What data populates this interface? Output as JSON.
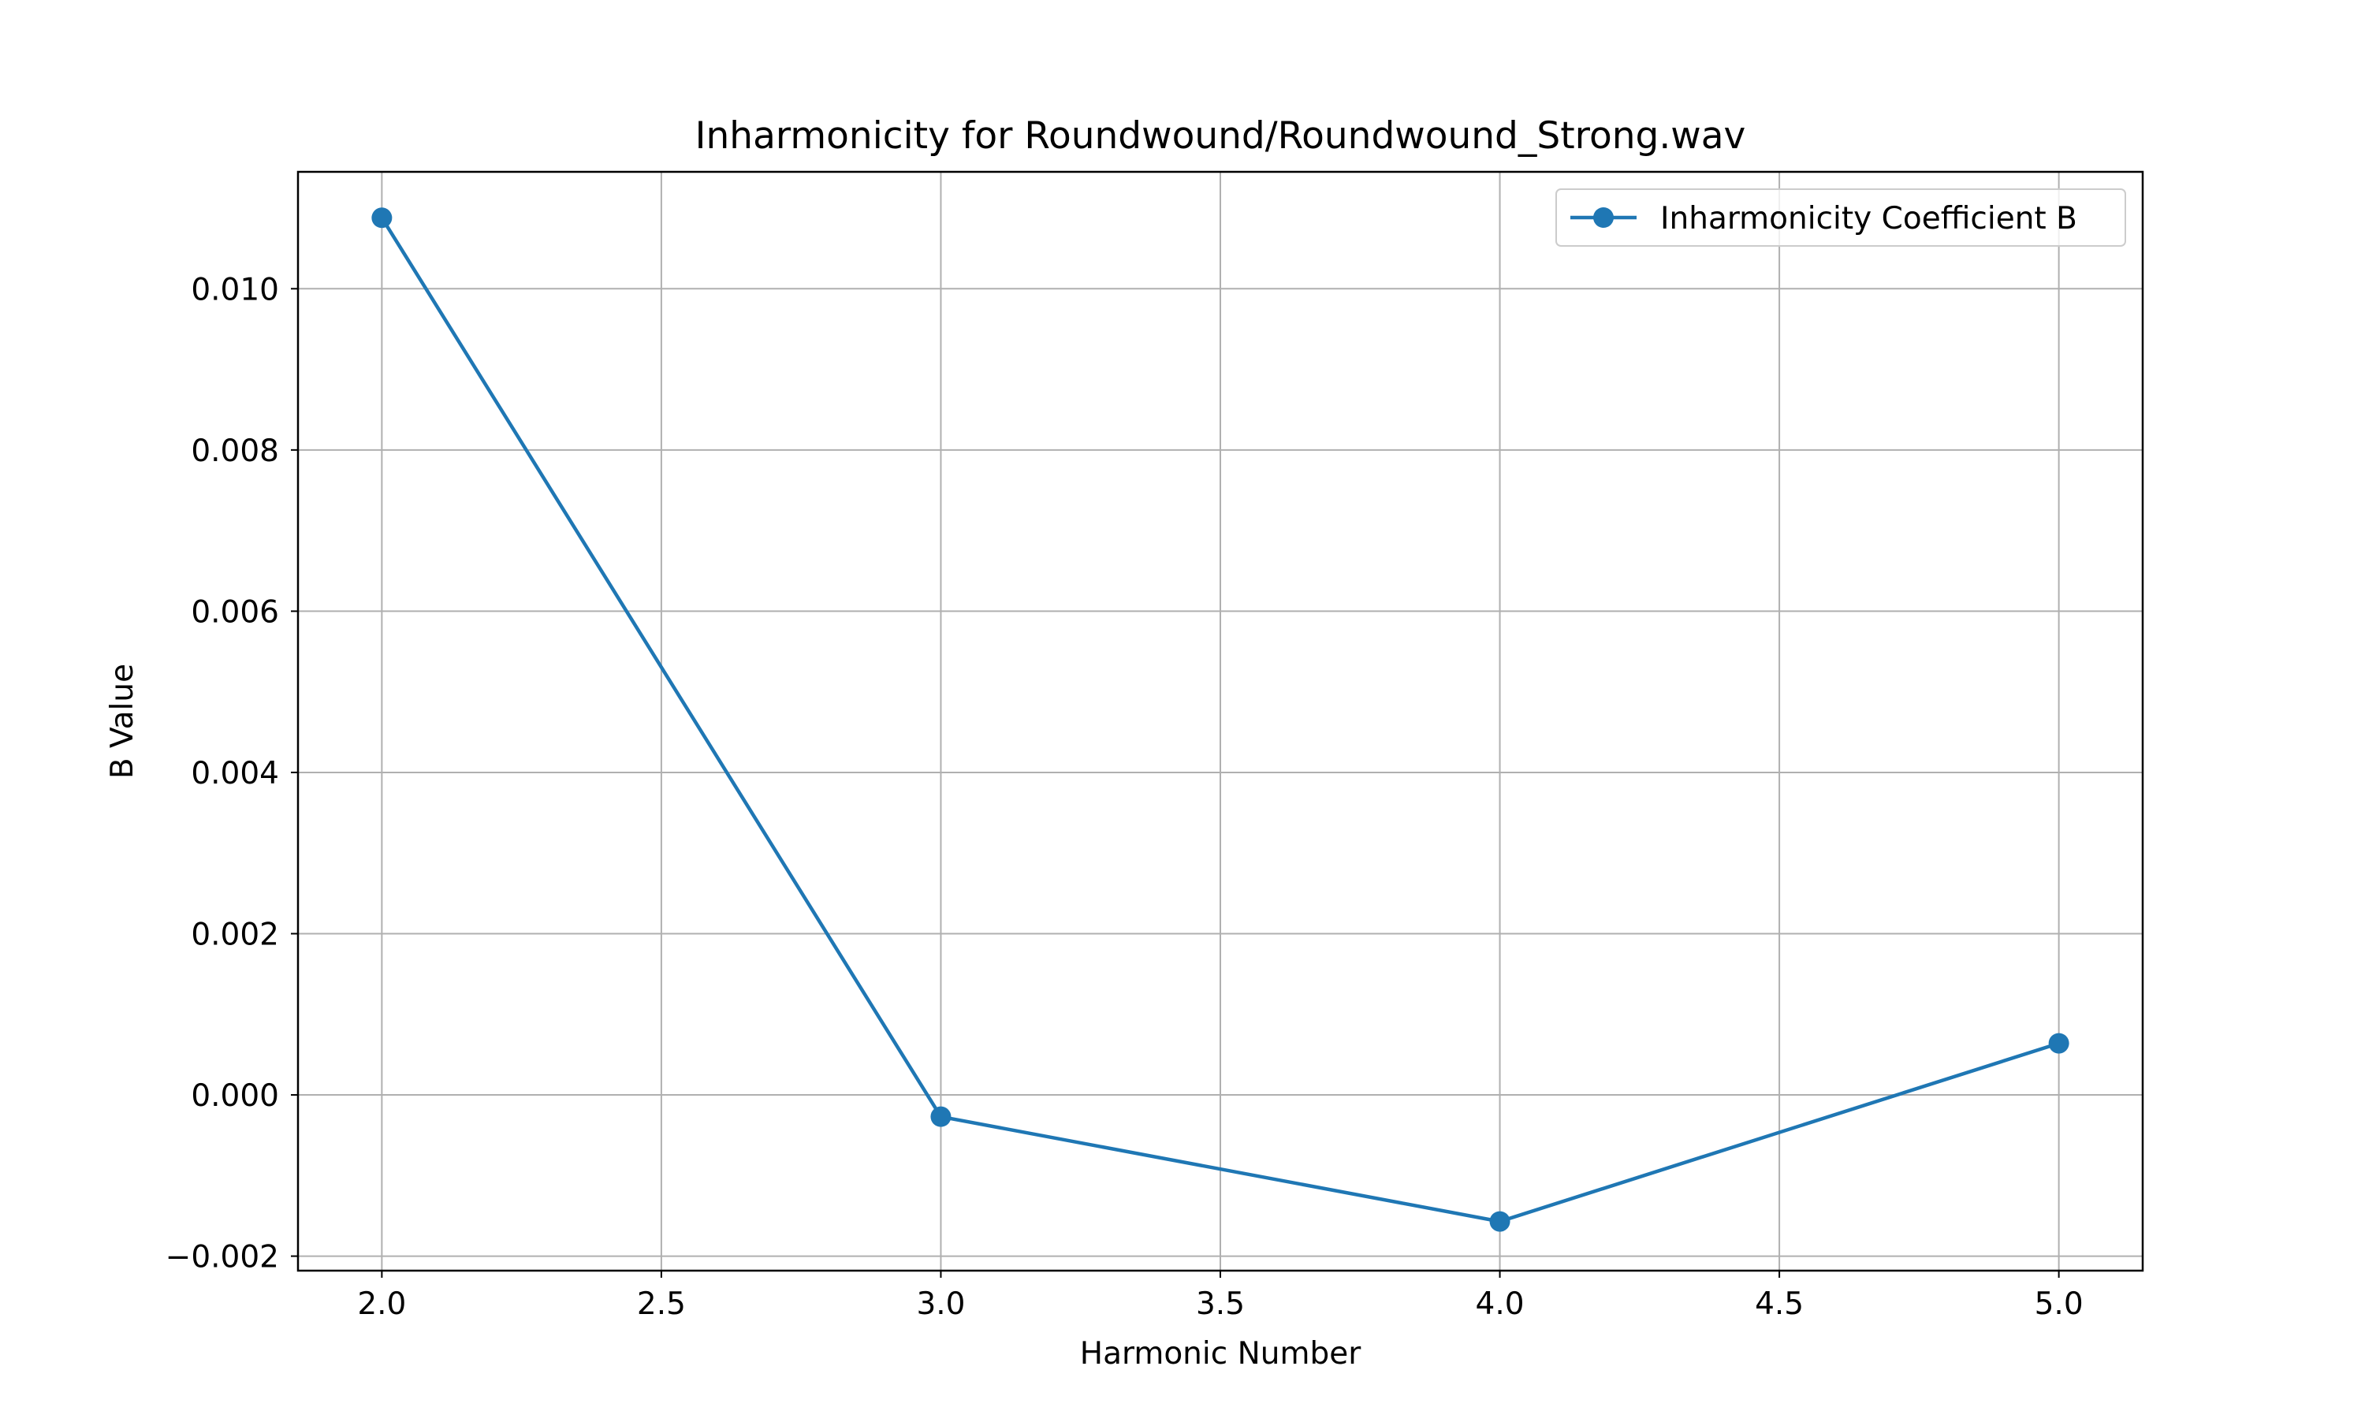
{
  "chart_data": {
    "type": "line",
    "title": "Inharmonicity for Roundwound/Roundwound_Strong.wav",
    "xlabel": "Harmonic Number",
    "ylabel": "B Value",
    "xlim": [
      1.85,
      5.15
    ],
    "ylim": [
      -0.00218,
      0.01145
    ],
    "grid": true,
    "legend_position": "top-right",
    "xticks": [
      2.0,
      2.5,
      3.0,
      3.5,
      4.0,
      4.5,
      5.0
    ],
    "xtick_labels": [
      "2.0",
      "2.5",
      "3.0",
      "3.5",
      "4.0",
      "4.5",
      "5.0"
    ],
    "yticks": [
      -0.002,
      0.0,
      0.002,
      0.004,
      0.006,
      0.008,
      0.01
    ],
    "ytick_labels": [
      "−0.002",
      "0.000",
      "0.002",
      "0.004",
      "0.006",
      "0.008",
      "0.010"
    ],
    "series": [
      {
        "name": "Inharmonicity Coefficient B",
        "color": "#1f77b4",
        "marker": "circle",
        "x": [
          2,
          3,
          4,
          5
        ],
        "y": [
          0.01088,
          -0.00027,
          -0.00157,
          0.00064
        ]
      }
    ]
  }
}
